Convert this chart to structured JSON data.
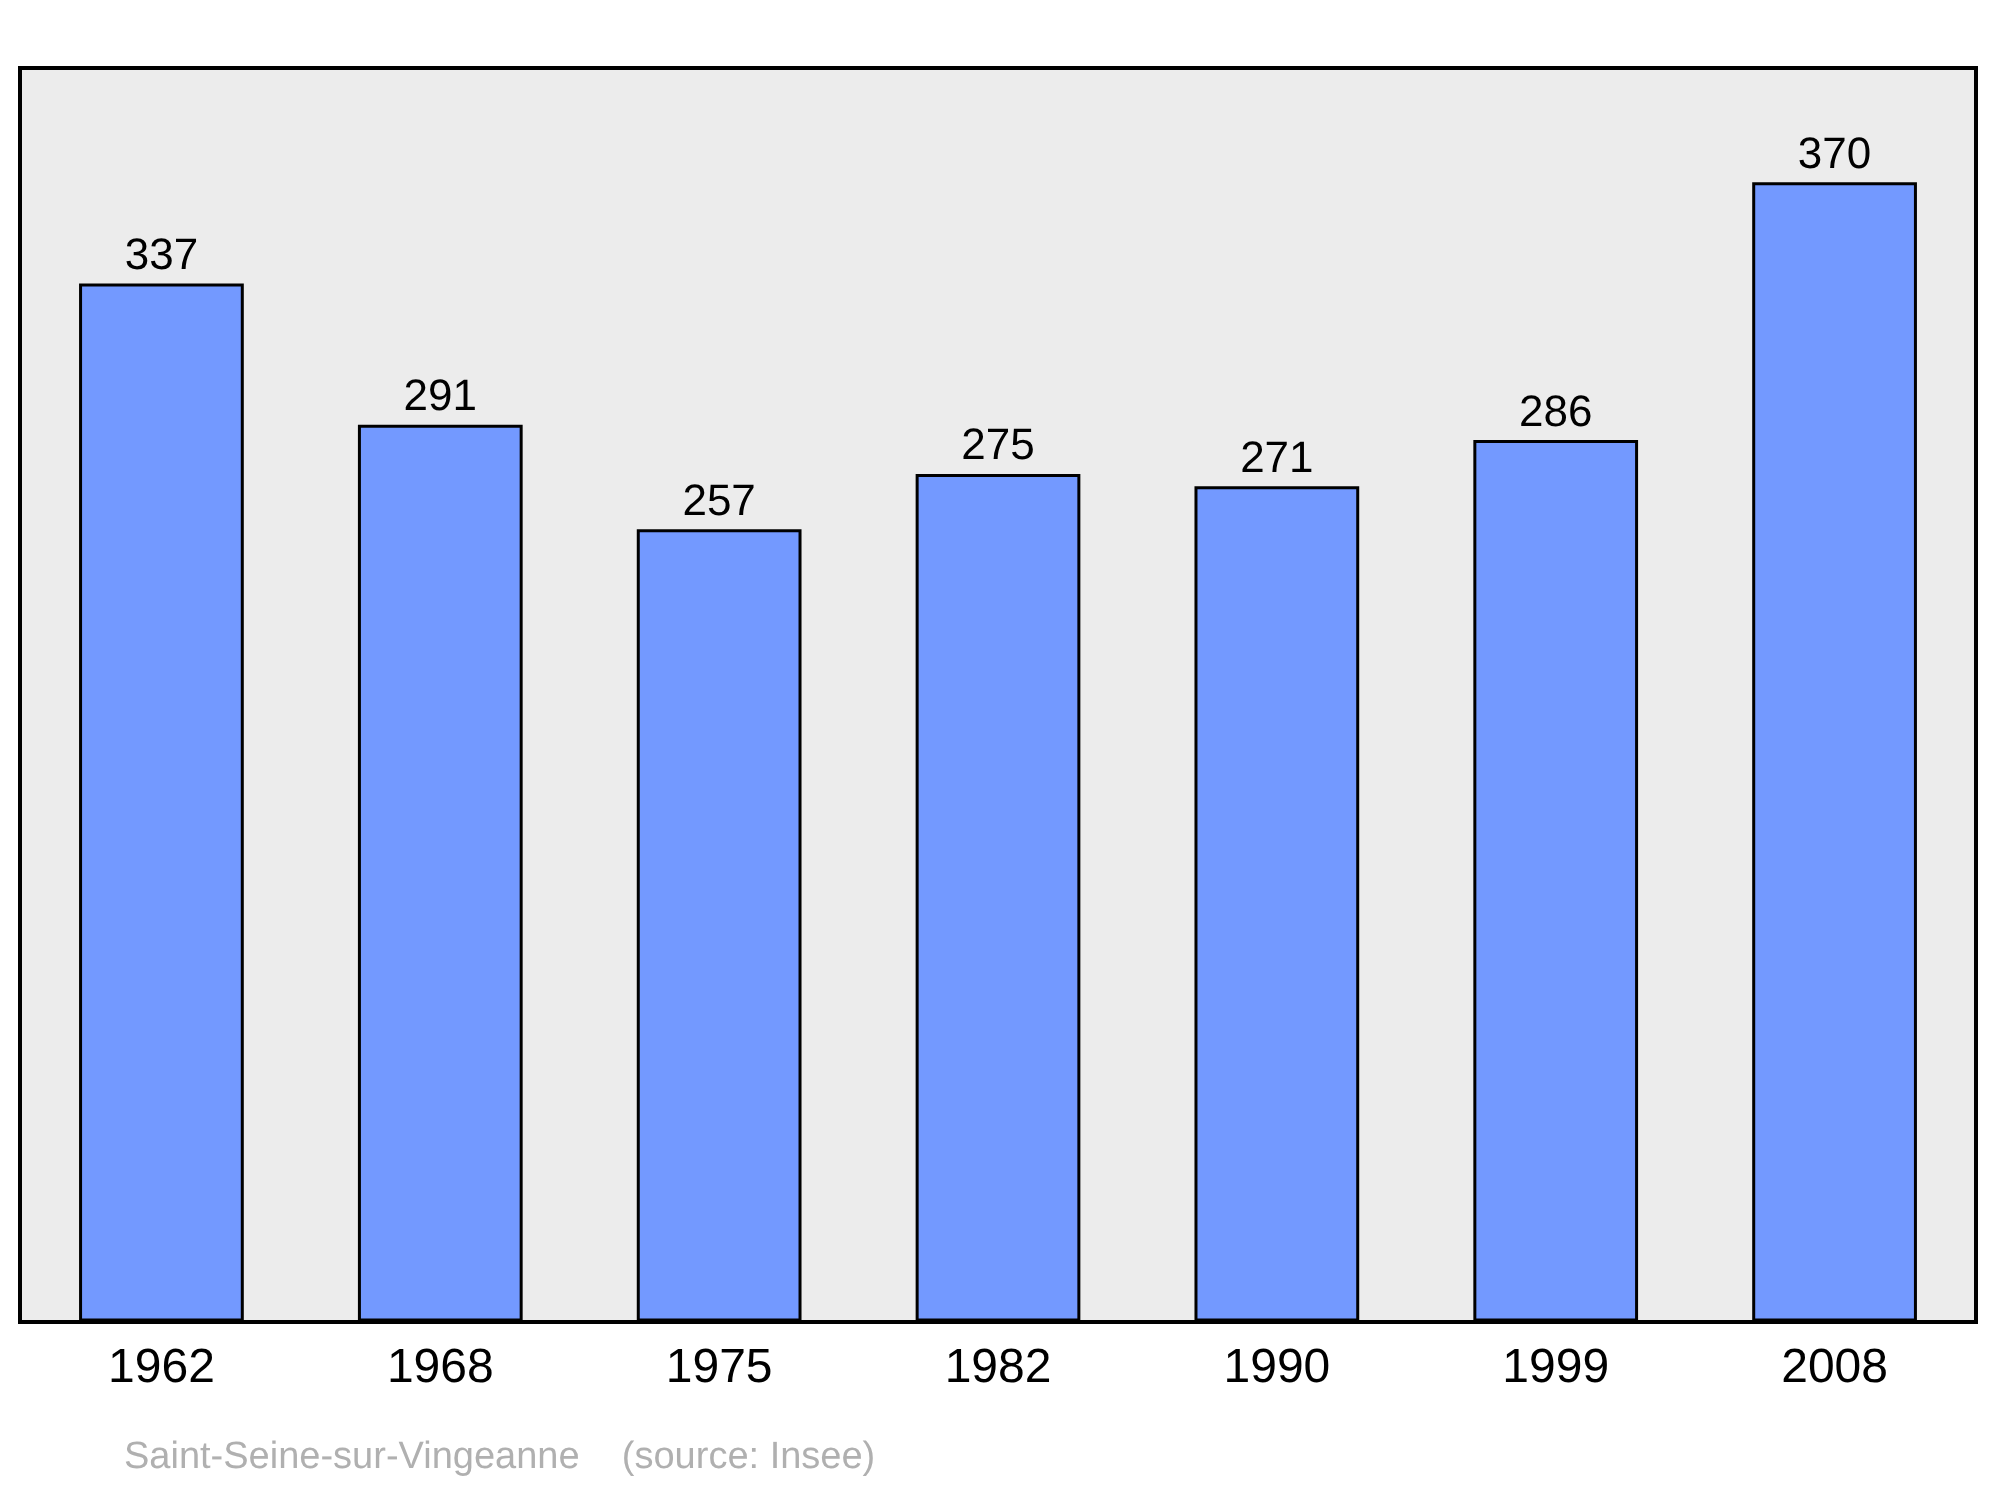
{
  "chart_data": {
    "type": "bar",
    "categories": [
      "1962",
      "1968",
      "1975",
      "1982",
      "1990",
      "1999",
      "2008"
    ],
    "values": [
      337,
      291,
      257,
      275,
      271,
      286,
      370
    ],
    "color": "#7399ff",
    "data_labels": true,
    "ylim": [
      0,
      407
    ],
    "tick_labels": "x",
    "grid": false,
    "annotations": [
      "Saint-Seine-sur-Vingeanne    (source: Insee)"
    ]
  }
}
